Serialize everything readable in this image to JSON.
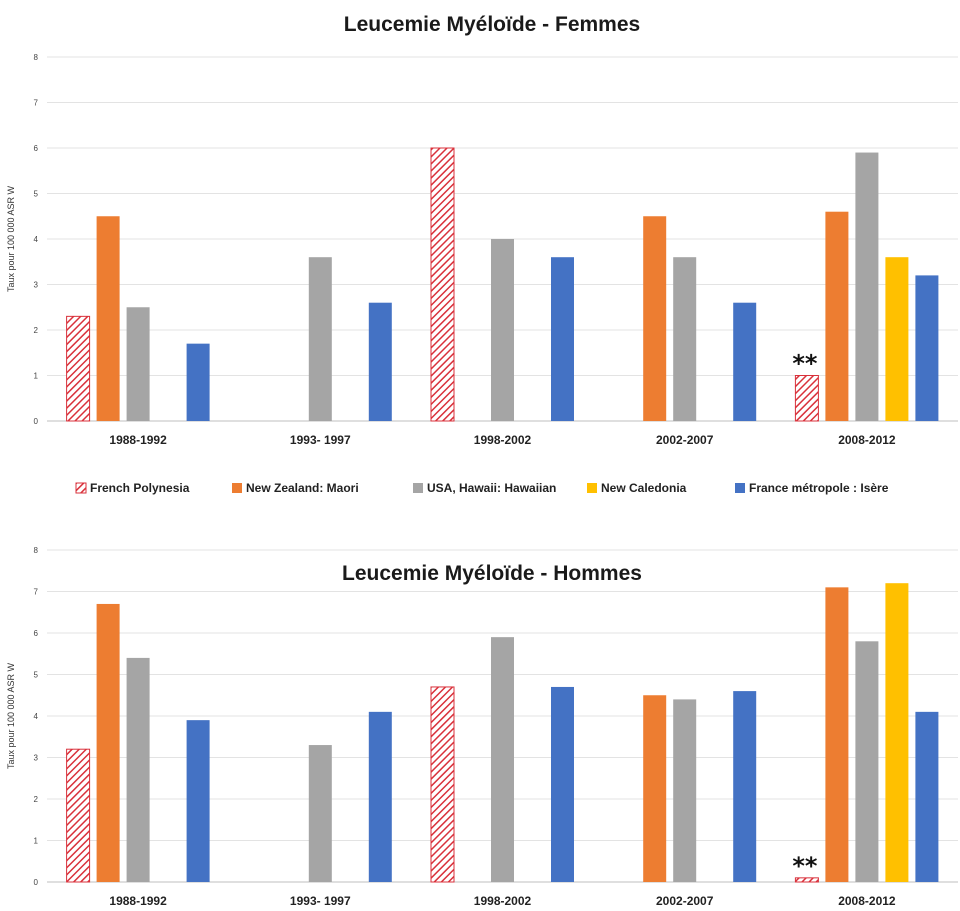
{
  "legend": [
    {
      "name": "French Polynesia",
      "color": "#d9313b",
      "pattern": "hatch"
    },
    {
      "name": "New Zealand: Maori",
      "color": "#ed7d31"
    },
    {
      "name": "USA, Hawaii: Hawaiian",
      "color": "#a5a5a5"
    },
    {
      "name": "New Caledonia",
      "color": "#ffc000"
    },
    {
      "name": "France métropole : Isère",
      "color": "#4472c4"
    }
  ],
  "chart_data": [
    {
      "type": "bar",
      "title": "Leucemie Myéloïde  - Femmes",
      "ylabel": "Taux pour 100 000 ASR W",
      "xlabel": "",
      "ylim": [
        0,
        8
      ],
      "yticks": [
        0,
        1,
        2,
        3,
        4,
        5,
        6,
        7,
        8
      ],
      "grid": true,
      "legend_position": "bottom",
      "categories": [
        "1988-1992",
        "1993- 1997",
        "1998-2002",
        "2002-2007",
        "2008-2012"
      ],
      "series": [
        {
          "name": "French Polynesia",
          "values": [
            2.3,
            null,
            6.0,
            null,
            1.0
          ]
        },
        {
          "name": "New Zealand: Maori",
          "values": [
            4.5,
            null,
            null,
            4.5,
            4.6
          ]
        },
        {
          "name": "USA, Hawaii: Hawaiian",
          "values": [
            2.5,
            3.6,
            4.0,
            3.6,
            5.9
          ]
        },
        {
          "name": "New Caledonia",
          "values": [
            null,
            null,
            null,
            null,
            3.6
          ]
        },
        {
          "name": "France métropole : Isère",
          "values": [
            1.7,
            2.6,
            3.6,
            2.6,
            3.2
          ]
        }
      ],
      "annotations": [
        {
          "text": "**",
          "category": "2008-2012",
          "series": "French Polynesia"
        }
      ]
    },
    {
      "type": "bar",
      "title": "Leucemie Myéloïde  - Hommes",
      "ylabel": "Taux pour 100 000 ASR W",
      "xlabel": "",
      "ylim": [
        0,
        8
      ],
      "yticks": [
        0,
        1,
        2,
        3,
        4,
        5,
        6,
        7,
        8
      ],
      "grid": true,
      "legend_position": "none",
      "categories": [
        "1988-1992",
        "1993- 1997",
        "1998-2002",
        "2002-2007",
        "2008-2012"
      ],
      "series": [
        {
          "name": "French Polynesia",
          "values": [
            3.2,
            null,
            4.7,
            null,
            0.1
          ]
        },
        {
          "name": "New Zealand: Maori",
          "values": [
            6.7,
            null,
            null,
            4.5,
            7.1
          ]
        },
        {
          "name": "USA, Hawaii: Hawaiian",
          "values": [
            5.4,
            3.3,
            5.9,
            4.4,
            5.8
          ]
        },
        {
          "name": "New Caledonia",
          "values": [
            null,
            null,
            null,
            null,
            7.2
          ]
        },
        {
          "name": "France métropole : Isère",
          "values": [
            3.9,
            4.1,
            4.7,
            4.6,
            4.1
          ]
        }
      ],
      "annotations": [
        {
          "text": "**",
          "category": "2008-2012",
          "series": "French Polynesia"
        }
      ]
    }
  ]
}
